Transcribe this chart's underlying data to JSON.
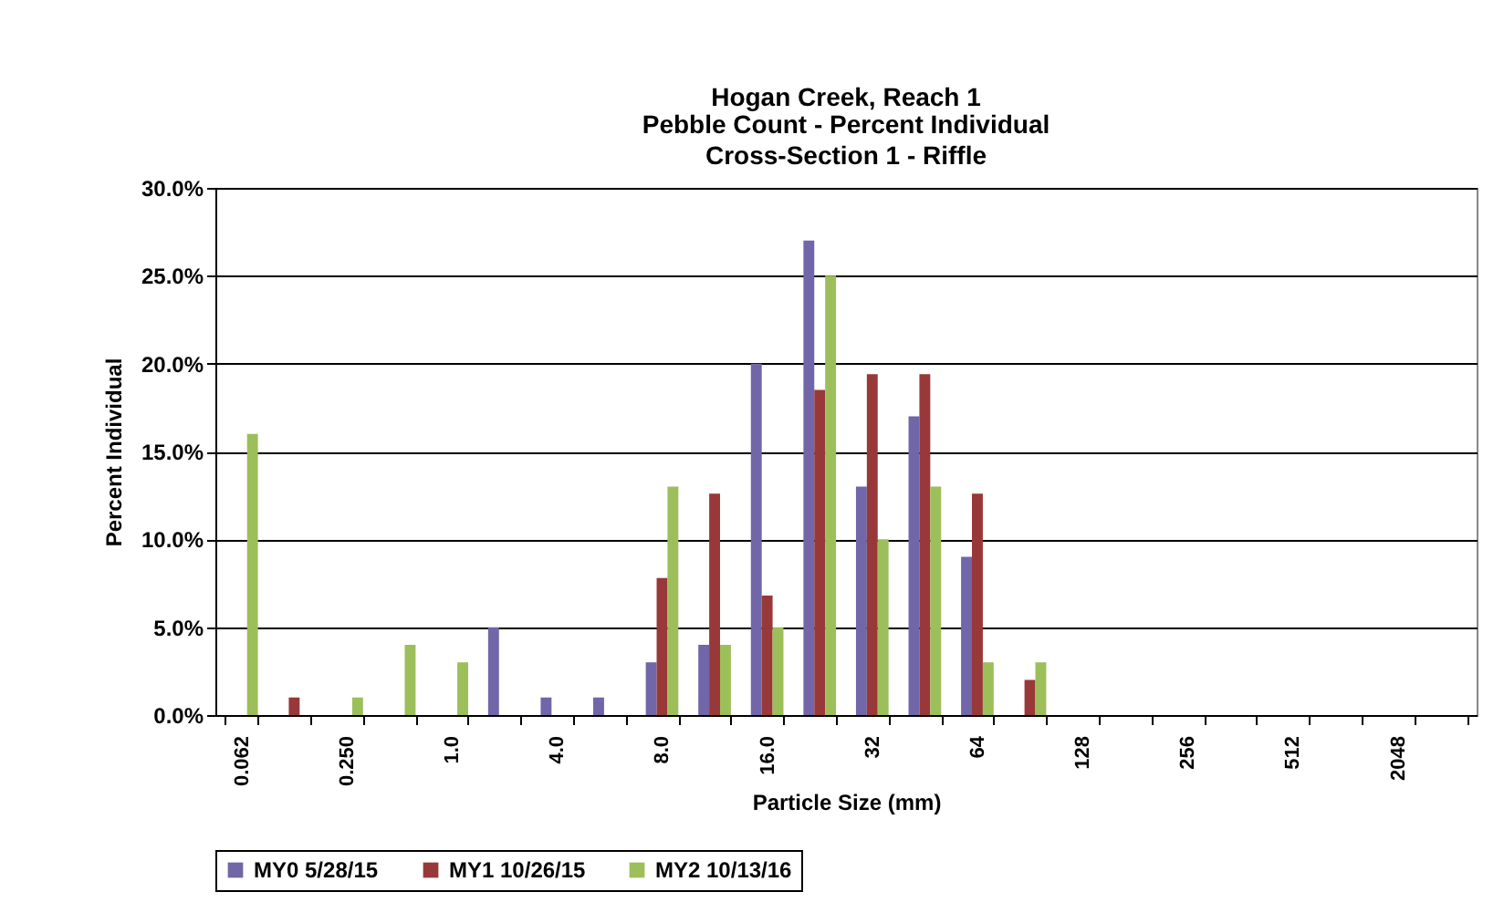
{
  "chart_data": {
    "type": "bar",
    "title": "Hogan Creek, Reach 1",
    "subtitle": "Pebble Count - Percent Individual\nCross-Section 1 - Riffle",
    "xlabel": "Particle Size (mm)",
    "ylabel": "Percent Individual",
    "categories": [
      "0.062",
      null,
      "0.250",
      null,
      "1.0",
      null,
      "4.0",
      null,
      "8.0",
      null,
      "16.0",
      null,
      "32",
      null,
      "64",
      null,
      "128",
      null,
      "256",
      null,
      "512",
      null,
      "2048",
      null
    ],
    "series": [
      {
        "name": "MY0 5/28/15",
        "color": "#7066a8",
        "values": [
          0,
          0,
          0,
          0,
          0,
          5,
          1,
          1,
          3,
          4,
          20,
          27,
          13,
          17,
          9,
          0,
          0,
          0,
          0,
          0,
          0,
          0,
          0,
          0
        ]
      },
      {
        "name": "MY1 10/26/15",
        "color": "#983838",
        "values": [
          0,
          1,
          0,
          0,
          0,
          0,
          0,
          0,
          7.8,
          12.6,
          6.8,
          18.5,
          19.4,
          19.4,
          12.6,
          2,
          0,
          0,
          0,
          0,
          0,
          0,
          0,
          0
        ]
      },
      {
        "name": "MY2 10/13/16",
        "color": "#9cbf5a",
        "values": [
          16,
          0,
          1,
          4,
          3,
          0,
          0,
          0,
          13,
          4,
          5,
          25,
          10,
          13,
          3,
          3,
          0,
          0,
          0,
          0,
          0,
          0,
          0,
          0
        ]
      }
    ],
    "ylim": [
      0,
      30
    ],
    "yticks": [
      {
        "value": 0,
        "label": "0.0%"
      },
      {
        "value": 5,
        "label": "5.0%"
      },
      {
        "value": 10,
        "label": "10.0%"
      },
      {
        "value": 15,
        "label": "15.0%"
      },
      {
        "value": 20,
        "label": "20.0%"
      },
      {
        "value": 25,
        "label": "25.0%"
      },
      {
        "value": 30,
        "label": "30.0%"
      }
    ],
    "grid": "y",
    "legend": "bottom"
  }
}
